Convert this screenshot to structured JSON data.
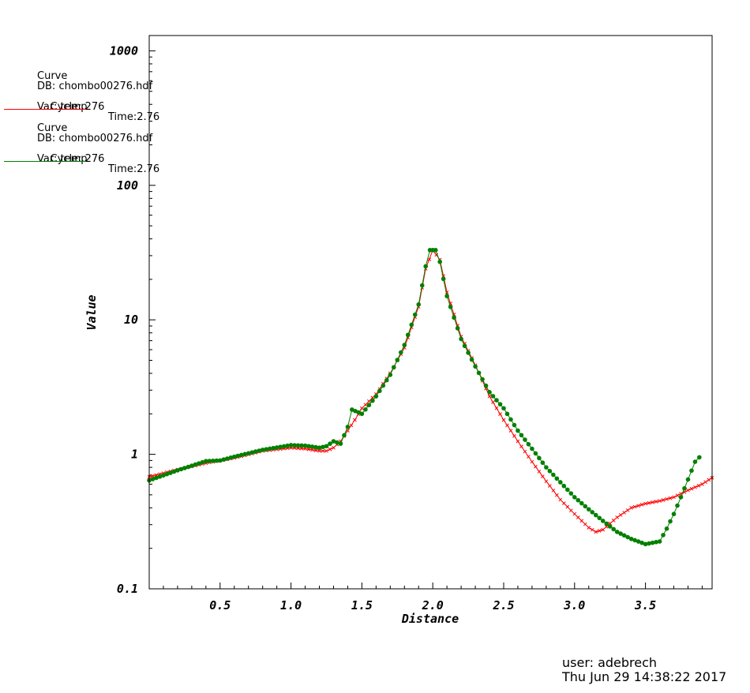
{
  "legend": [
    {
      "title": "Curve",
      "db": "DB: chombo00276.hdf",
      "cycle": "Cycle: 276",
      "time": "Time:2.76",
      "var": "Var: temp",
      "color": "#ff0000"
    },
    {
      "title": "Curve",
      "db": "DB: chombo00276.hdf",
      "cycle": "Cycle: 276",
      "time": "Time:2.76",
      "var": "Var: temp",
      "color": "#008000"
    }
  ],
  "footer": {
    "user": "user: adebrech",
    "datetime": "Thu Jun 29 14:38:22 2017"
  },
  "chart_data": {
    "type": "line",
    "title": "",
    "xlabel": "Distance",
    "ylabel": "Value",
    "xlim": [
      0,
      3.97
    ],
    "ylim": [
      0.1,
      1300
    ],
    "yscale": "log",
    "x_ticks": [
      "0.5",
      "1.0",
      "1.5",
      "2.0",
      "2.5",
      "3.0",
      "3.5"
    ],
    "y_ticks": [
      "0.1",
      "1",
      "10",
      "100",
      "1000"
    ],
    "grid": false,
    "legend_position": "top-left, outside plot",
    "series": [
      {
        "color": "#ff0000",
        "marker": "small cross",
        "points": [
          [
            0,
            0.68
          ],
          [
            0.2,
            0.77
          ],
          [
            0.4,
            0.86
          ],
          [
            0.6,
            0.94
          ],
          [
            0.8,
            1.06
          ],
          [
            1.0,
            1.12
          ],
          [
            1.1,
            1.1
          ],
          [
            1.2,
            1.06
          ],
          [
            1.25,
            1.06
          ],
          [
            1.3,
            1.12
          ],
          [
            1.35,
            1.25
          ],
          [
            1.4,
            1.5
          ],
          [
            1.45,
            1.8
          ],
          [
            1.5,
            2.2
          ],
          [
            1.6,
            2.8
          ],
          [
            1.7,
            4.0
          ],
          [
            1.8,
            6.2
          ],
          [
            1.9,
            12.5
          ],
          [
            1.95,
            24
          ],
          [
            2.0,
            33
          ],
          [
            2.05,
            28
          ],
          [
            2.1,
            16
          ],
          [
            2.2,
            7.5
          ],
          [
            2.3,
            4.6
          ],
          [
            2.4,
            2.7
          ],
          [
            2.5,
            1.8
          ],
          [
            2.6,
            1.25
          ],
          [
            2.7,
            0.88
          ],
          [
            2.8,
            0.63
          ],
          [
            2.9,
            0.46
          ],
          [
            3.0,
            0.36
          ],
          [
            3.1,
            0.285
          ],
          [
            3.15,
            0.265
          ],
          [
            3.2,
            0.275
          ],
          [
            3.3,
            0.34
          ],
          [
            3.4,
            0.4
          ],
          [
            3.5,
            0.43
          ],
          [
            3.6,
            0.45
          ],
          [
            3.7,
            0.48
          ],
          [
            3.8,
            0.54
          ],
          [
            3.9,
            0.6
          ],
          [
            3.97,
            0.67
          ]
        ]
      },
      {
        "color": "#008000",
        "marker": "filled circle",
        "points": [
          [
            0,
            0.64
          ],
          [
            0.2,
            0.76
          ],
          [
            0.4,
            0.89
          ],
          [
            0.5,
            0.9
          ],
          [
            0.6,
            0.96
          ],
          [
            0.8,
            1.08
          ],
          [
            1.0,
            1.17
          ],
          [
            1.1,
            1.16
          ],
          [
            1.2,
            1.12
          ],
          [
            1.25,
            1.15
          ],
          [
            1.3,
            1.25
          ],
          [
            1.35,
            1.2
          ],
          [
            1.4,
            1.6
          ],
          [
            1.43,
            2.15
          ],
          [
            1.5,
            2.0
          ],
          [
            1.6,
            2.7
          ],
          [
            1.7,
            3.9
          ],
          [
            1.8,
            6.5
          ],
          [
            1.9,
            13
          ],
          [
            1.95,
            25
          ],
          [
            1.98,
            33
          ],
          [
            2.02,
            33
          ],
          [
            2.05,
            27
          ],
          [
            2.1,
            15
          ],
          [
            2.2,
            7.2
          ],
          [
            2.3,
            4.5
          ],
          [
            2.4,
            2.9
          ],
          [
            2.5,
            2.2
          ],
          [
            2.6,
            1.5
          ],
          [
            2.7,
            1.1
          ],
          [
            2.8,
            0.8
          ],
          [
            2.9,
            0.62
          ],
          [
            3.0,
            0.48
          ],
          [
            3.1,
            0.39
          ],
          [
            3.2,
            0.32
          ],
          [
            3.3,
            0.265
          ],
          [
            3.4,
            0.235
          ],
          [
            3.5,
            0.215
          ],
          [
            3.6,
            0.225
          ],
          [
            3.65,
            0.28
          ],
          [
            3.7,
            0.36
          ],
          [
            3.75,
            0.48
          ],
          [
            3.8,
            0.65
          ],
          [
            3.85,
            0.88
          ],
          [
            3.88,
            0.95
          ]
        ]
      }
    ]
  }
}
